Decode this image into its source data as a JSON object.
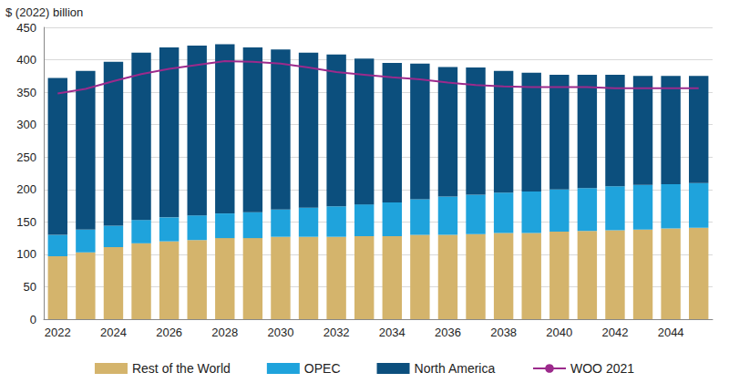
{
  "chart_data": {
    "type": "bar",
    "stacked": true,
    "y_label": "$ (2022) billion",
    "categories": [
      "2022",
      null,
      "2024",
      null,
      "2026",
      null,
      "2028",
      null,
      "2030",
      null,
      "2032",
      null,
      "2034",
      null,
      "2036",
      null,
      "2038",
      null,
      "2040",
      null,
      "2042",
      null,
      "2044",
      null
    ],
    "ylim": [
      0,
      450
    ],
    "yticks": [
      0,
      50,
      100,
      150,
      200,
      250,
      300,
      350,
      400,
      450
    ],
    "grid": true,
    "legend": "bottom",
    "series": [
      {
        "name": "Rest of the World",
        "type": "bar",
        "color": "#d4b46c",
        "values": [
          97,
          103,
          111,
          117,
          120,
          122,
          125,
          125,
          127,
          127,
          127,
          128,
          128,
          130,
          130,
          131,
          133,
          133,
          135,
          136,
          137,
          138,
          140,
          141
        ]
      },
      {
        "name": "OPEC",
        "type": "bar",
        "color": "#1fa3dc",
        "values": [
          33,
          35,
          33,
          36,
          37,
          38,
          38,
          40,
          42,
          45,
          47,
          49,
          52,
          55,
          59,
          61,
          62,
          64,
          65,
          66,
          68,
          69,
          68,
          69
        ]
      },
      {
        "name": "North America",
        "type": "bar",
        "color": "#0c4f7d",
        "values": [
          242,
          245,
          253,
          258,
          262,
          262,
          261,
          254,
          247,
          239,
          234,
          225,
          215,
          209,
          200,
          196,
          188,
          183,
          177,
          175,
          172,
          168,
          167,
          165
        ]
      },
      {
        "name": "WOO 2021",
        "type": "line",
        "color": "#9c2a8c",
        "values": [
          348,
          355,
          367,
          378,
          386,
          392,
          398,
          397,
          394,
          388,
          381,
          377,
          373,
          370,
          365,
          361,
          359,
          358,
          358,
          358,
          356,
          356,
          356,
          356
        ]
      }
    ]
  }
}
